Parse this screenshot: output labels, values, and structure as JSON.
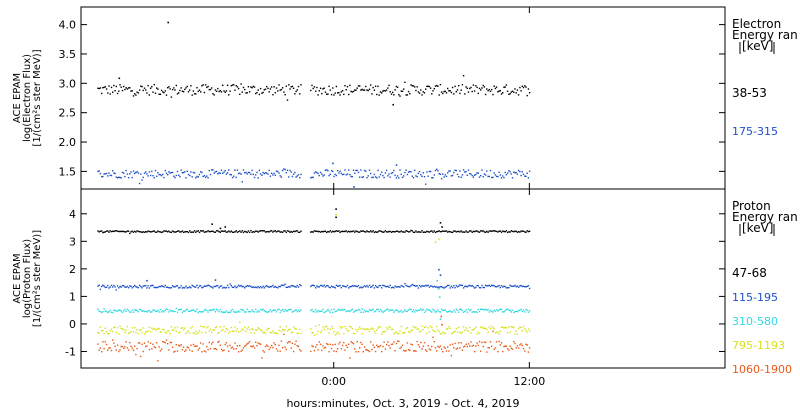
{
  "chart_data": [
    {
      "type": "scatter",
      "ylabel": [
        "ACE EPAM",
        "log(Electron Flux)",
        "[1/(cm²s ster MeV)]"
      ],
      "ylim": [
        1.2,
        4.3
      ],
      "yticks": [
        1.5,
        2.0,
        2.5,
        3.0,
        3.5,
        4.0
      ],
      "ytick_labels": [
        "1.5",
        "2.0",
        "2.5",
        "3.0",
        "3.5",
        "4.0"
      ],
      "legend_title": [
        "Electron",
        "Energy ran",
        "[keV]"
      ],
      "x_data_range_hours": [
        -14.5,
        12.0
      ],
      "gap_hours": [
        -2.0,
        -1.5
      ],
      "series": [
        {
          "name": "38-53",
          "color": "#000000",
          "base": 2.9,
          "noise": 0.09,
          "spikes": [
            [
              -10.2,
              4.05
            ],
            [
              -13.2,
              3.1
            ],
            [
              3.6,
              2.65
            ]
          ]
        },
        {
          "name": "175-315",
          "color": "#1c50c8",
          "base": 1.47,
          "noise": 0.07,
          "spikes": [
            [
              -0.1,
              1.65
            ],
            [
              3.8,
              1.62
            ],
            [
              1.2,
              1.25
            ]
          ]
        }
      ]
    },
    {
      "type": "scatter",
      "ylabel": [
        "ACE EPAM",
        "log(Proton Flux)",
        "[1/(cm²s ster MeV)]"
      ],
      "ylim": [
        -1.6,
        4.9
      ],
      "yticks": [
        -1,
        0,
        1,
        2,
        3,
        4
      ],
      "ytick_labels": [
        "-1",
        "0",
        "1",
        "2",
        "3",
        "4"
      ],
      "legend_title": [
        "Proton",
        "Energy ran",
        "[keV]"
      ],
      "x_data_range_hours": [
        -14.5,
        12.0
      ],
      "gap_hours": [
        -2.0,
        -1.5
      ],
      "series": [
        {
          "name": "47-68",
          "color": "#000000",
          "base": 3.38,
          "noise": 0.03,
          "spikes": [
            [
              -7.5,
              3.65
            ],
            [
              -7.0,
              3.5
            ],
            [
              -6.7,
              3.55
            ],
            [
              0.1,
              4.2
            ],
            [
              0.1,
              3.9
            ],
            [
              6.5,
              3.7
            ],
            [
              6.6,
              3.55
            ]
          ]
        },
        {
          "name": "115-195",
          "color": "#1c50c8",
          "base": 1.38,
          "noise": 0.05,
          "spikes": [
            [
              -11.5,
              1.6
            ],
            [
              -7.3,
              1.62
            ],
            [
              6.4,
              2.0
            ],
            [
              6.5,
              1.8
            ]
          ]
        },
        {
          "name": "310-580",
          "color": "#30d8e0",
          "base": 0.5,
          "noise": 0.06,
          "spikes": [
            [
              6.3,
              1.6
            ],
            [
              6.4,
              1.3
            ],
            [
              6.45,
              1.0
            ],
            [
              6.5,
              0.2
            ]
          ]
        },
        {
          "name": "795-1193",
          "color": "#d8e020",
          "base": -0.2,
          "noise": 0.14,
          "spikes": [
            [
              0.1,
              4.0
            ],
            [
              6.2,
              3.0
            ],
            [
              6.4,
              3.1
            ]
          ]
        },
        {
          "name": "1060-1900",
          "color": "#e85a18",
          "base": -0.8,
          "noise": 0.2,
          "spikes": [
            [
              6.55,
              0.3
            ],
            [
              6.6,
              0.0
            ]
          ]
        }
      ]
    }
  ],
  "x_axis": {
    "ticks_hours": [
      0,
      12
    ],
    "tick_labels": [
      "0:00",
      "12:00"
    ],
    "label": "hours:minutes, Oct.  3, 2019 - Oct.  4, 2019",
    "xlim_hours": [
      -15.5,
      24
    ]
  }
}
